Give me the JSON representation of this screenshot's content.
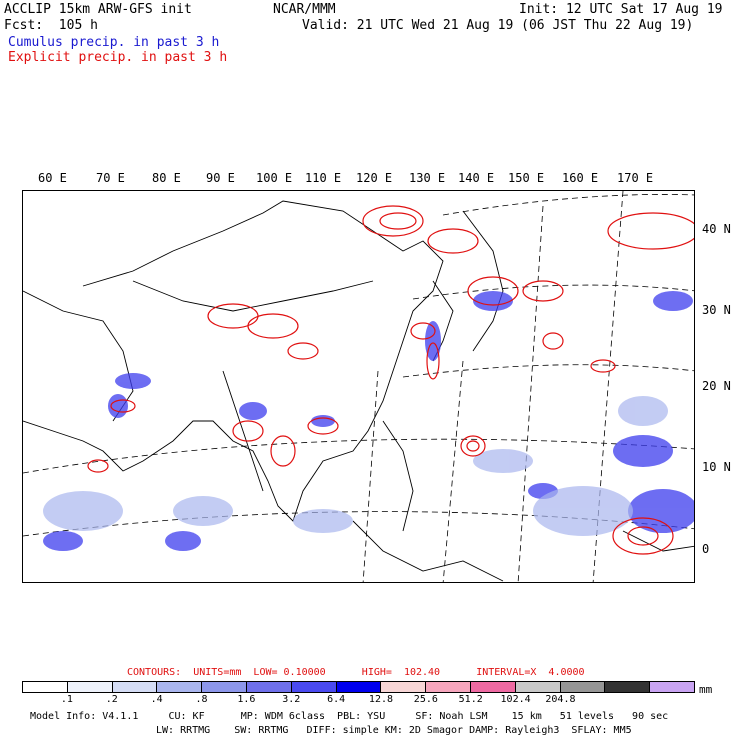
{
  "header": {
    "line1_left": "ACCLIP 15km ARW-GFS init",
    "line1_center": "NCAR/MMM",
    "line1_right": "Init: 12 UTC Sat 17 Aug 19",
    "line2_left": "Fcst:  105 h",
    "line2_right": "Valid: 21 UTC Wed 21 Aug 19 (06 JST Thu 22 Aug 19)",
    "legend_cumulus": "Cumulus precip. in past 3 h",
    "legend_explicit": "Explicit precip. in past 3 h"
  },
  "map": {
    "lon_labels": [
      "60 E",
      "70 E",
      "80 E",
      "90 E",
      "100 E",
      "110 E",
      "120 E",
      "130 E",
      "140 E",
      "150 E",
      "160 E",
      "170 E"
    ],
    "lat_labels": [
      "40 N",
      "30 N",
      "20 N",
      "10 N",
      "0"
    ]
  },
  "scale": {
    "contours": "CONTOURS:  UNITS=mm  LOW= 0.10000      HIGH=  102.40      INTERVAL=X  4.0000",
    "colors": [
      "#ffffff",
      "#eef2fb",
      "#d5ddf5",
      "#aab6ee",
      "#8d97ea",
      "#6f70ea",
      "#4a4af0",
      "#0000ee",
      "#f7d6d6",
      "#f6a6bd",
      "#ee6aa2",
      "#c8c8c8",
      "#969696",
      "#333333",
      "#c9a4f2"
    ],
    "ticks": [
      ".1",
      ".2",
      ".4",
      ".8",
      "1.6",
      "3.2",
      "6.4",
      "12.8",
      "25.6",
      "51.2",
      "102.4",
      "204.8"
    ],
    "unit": "mm"
  },
  "footer": {
    "line1": "Model Info: V4.1.1     CU: KF      MP: WDM 6class  PBL: YSU     SF: Noah LSM    15 km   51 levels   90 sec",
    "line2": "LW: RRTMG    SW: RRTMG   DIFF: simple KM: 2D Smagor DAMP: Rayleigh3  SFLAY: MM5"
  }
}
